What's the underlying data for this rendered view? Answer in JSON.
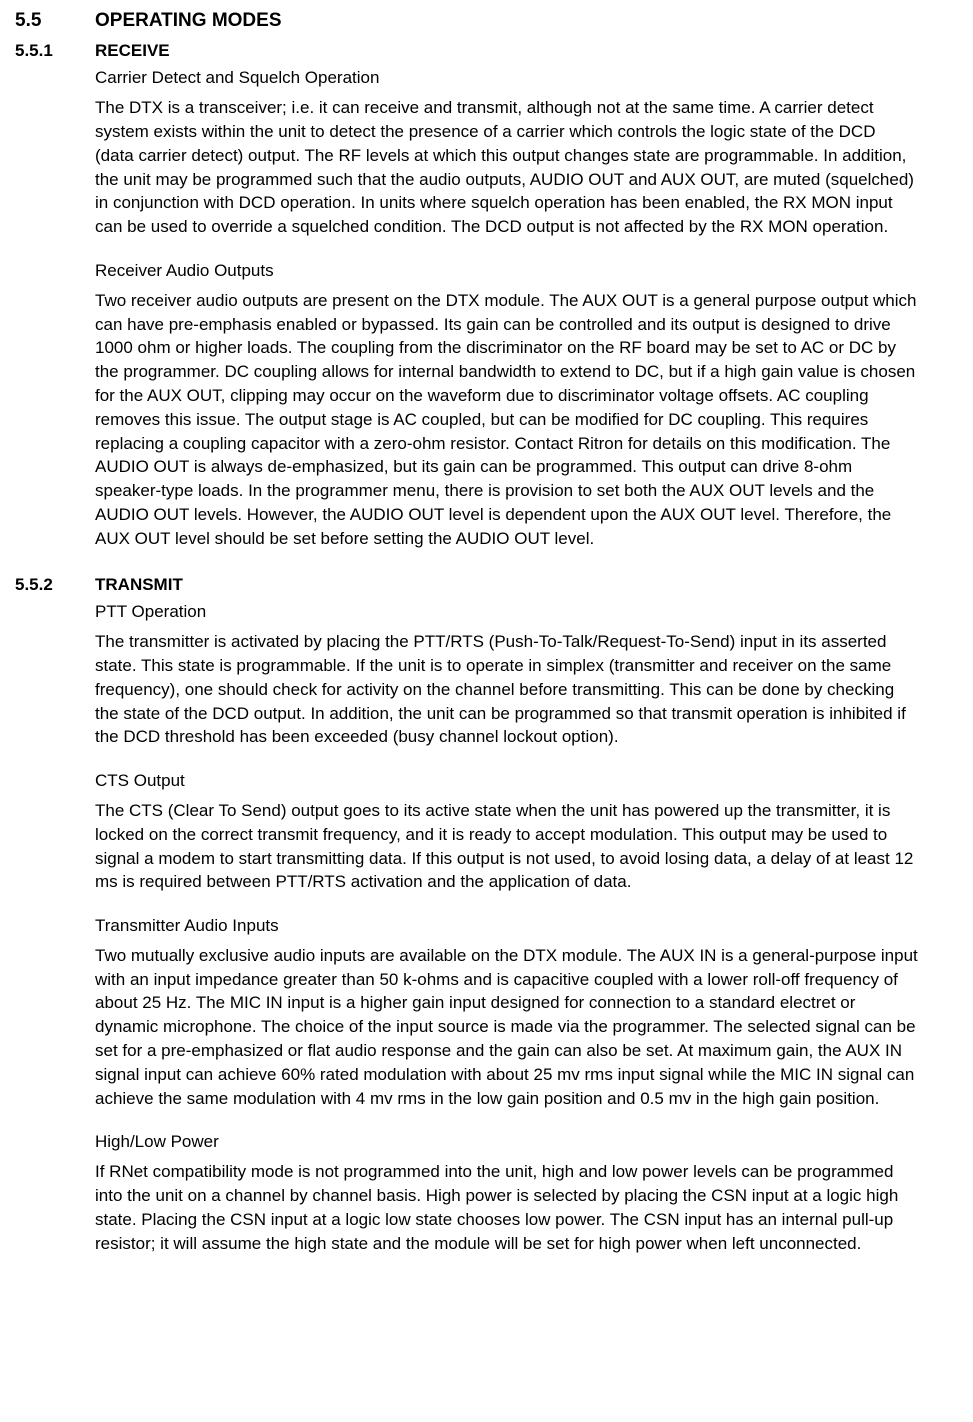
{
  "doc": {
    "section_main": {
      "number": "5.5",
      "title": "OPERATING MODES"
    },
    "section_551": {
      "number": "5.5.1",
      "title": "RECEIVE",
      "block1": {
        "heading": "Carrier Detect and Squelch Operation",
        "text": "The DTX is a transceiver; i.e. it can receive and transmit, although not at the same time.  A carrier detect system exists within the unit to detect the presence of a carrier which controls the logic state of the DCD (data carrier detect) output.  The RF levels at which this output changes state are programmable.  In addition, the unit may be programmed such that the audio outputs, AUDIO OUT and AUX OUT, are muted (squelched) in conjunction with DCD operation.  In units where squelch operation has been enabled, the RX MON input can be used to override a squelched condition.  The DCD output is not affected by the RX MON operation."
      },
      "block2": {
        "heading": "Receiver Audio Outputs",
        "text": "Two receiver audio outputs are present on the DTX module.  The AUX OUT is a general purpose output which can have pre-emphasis enabled or bypassed.  Its gain can be controlled and its output is designed to drive 1000 ohm or higher loads.  The coupling from the discriminator on the RF board may be set to AC or DC by the programmer.  DC coupling allows for internal bandwidth to extend to DC, but if a high gain value is chosen for the AUX OUT, clipping may occur on the waveform due to discriminator voltage offsets.  AC coupling removes this issue.  The output stage is AC coupled, but can be modified for DC coupling.  This requires replacing a coupling capacitor with a zero-ohm resistor.  Contact Ritron for details on this modification.  The AUDIO OUT is always de-emphasized, but its gain can be programmed. This output can drive 8-ohm speaker-type loads. In the programmer menu, there is provision to set both the AUX OUT levels and the AUDIO OUT levels. However, the AUDIO OUT level is dependent upon the AUX OUT level.  Therefore, the AUX OUT level should be set before setting the AUDIO OUT level."
      }
    },
    "section_552": {
      "number": "5.5.2",
      "title": "TRANSMIT",
      "block1": {
        "heading": "PTT Operation",
        "text": "The transmitter is activated by placing the PTT/RTS (Push-To-Talk/Request-To-Send) input in its asserted state.  This state is programmable.  If the unit is to operate in simplex (transmitter and receiver on the same frequency), one should check for activity on the channel before transmitting.  This can be done by checking the state of the DCD output.  In addition, the unit can be programmed so that transmit operation is inhibited if the DCD threshold has been exceeded (busy channel lockout option)."
      },
      "block2": {
        "heading": "CTS Output",
        "text": "The CTS (Clear To Send) output goes to its active state when the unit has powered up the transmitter, it is locked on the correct transmit frequency, and it is ready to accept modulation.  This output may be used to signal a modem to start transmitting data.  If this output is not used, to avoid losing data, a delay of at least 12 ms is required between PTT/RTS activation and the application of data."
      },
      "block3": {
        "heading": "Transmitter Audio Inputs",
        "text": "Two mutually exclusive audio inputs are available on the DTX module.  The AUX IN is a general-purpose input with an input impedance greater than 50 k-ohms and is capacitive coupled with a lower roll-off frequency of about 25 Hz.  The MIC IN input is a higher gain input designed for connection to a standard electret or dynamic microphone. The choice of the input source is made via the programmer. The selected signal can be set for a pre-emphasized or flat audio response and the gain can also be set. At maximum gain, the AUX IN signal input can achieve 60% rated modulation with about 25 mv rms input signal while the MIC IN signal can achieve the same modulation with 4 mv rms in the low gain position and 0.5 mv in the high gain position."
      },
      "block4": {
        "heading": "High/Low Power",
        "text": "If RNet compatibility mode is not programmed into the unit, high and low power levels can be programmed into the unit on a channel by channel basis.  High power is selected by placing the CSN input at a logic high state.  Placing the CSN input at a logic low state chooses low power.  The CSN input has an internal pull-up resistor; it will assume the high state and the module will be set for  high power when left unconnected."
      }
    }
  }
}
